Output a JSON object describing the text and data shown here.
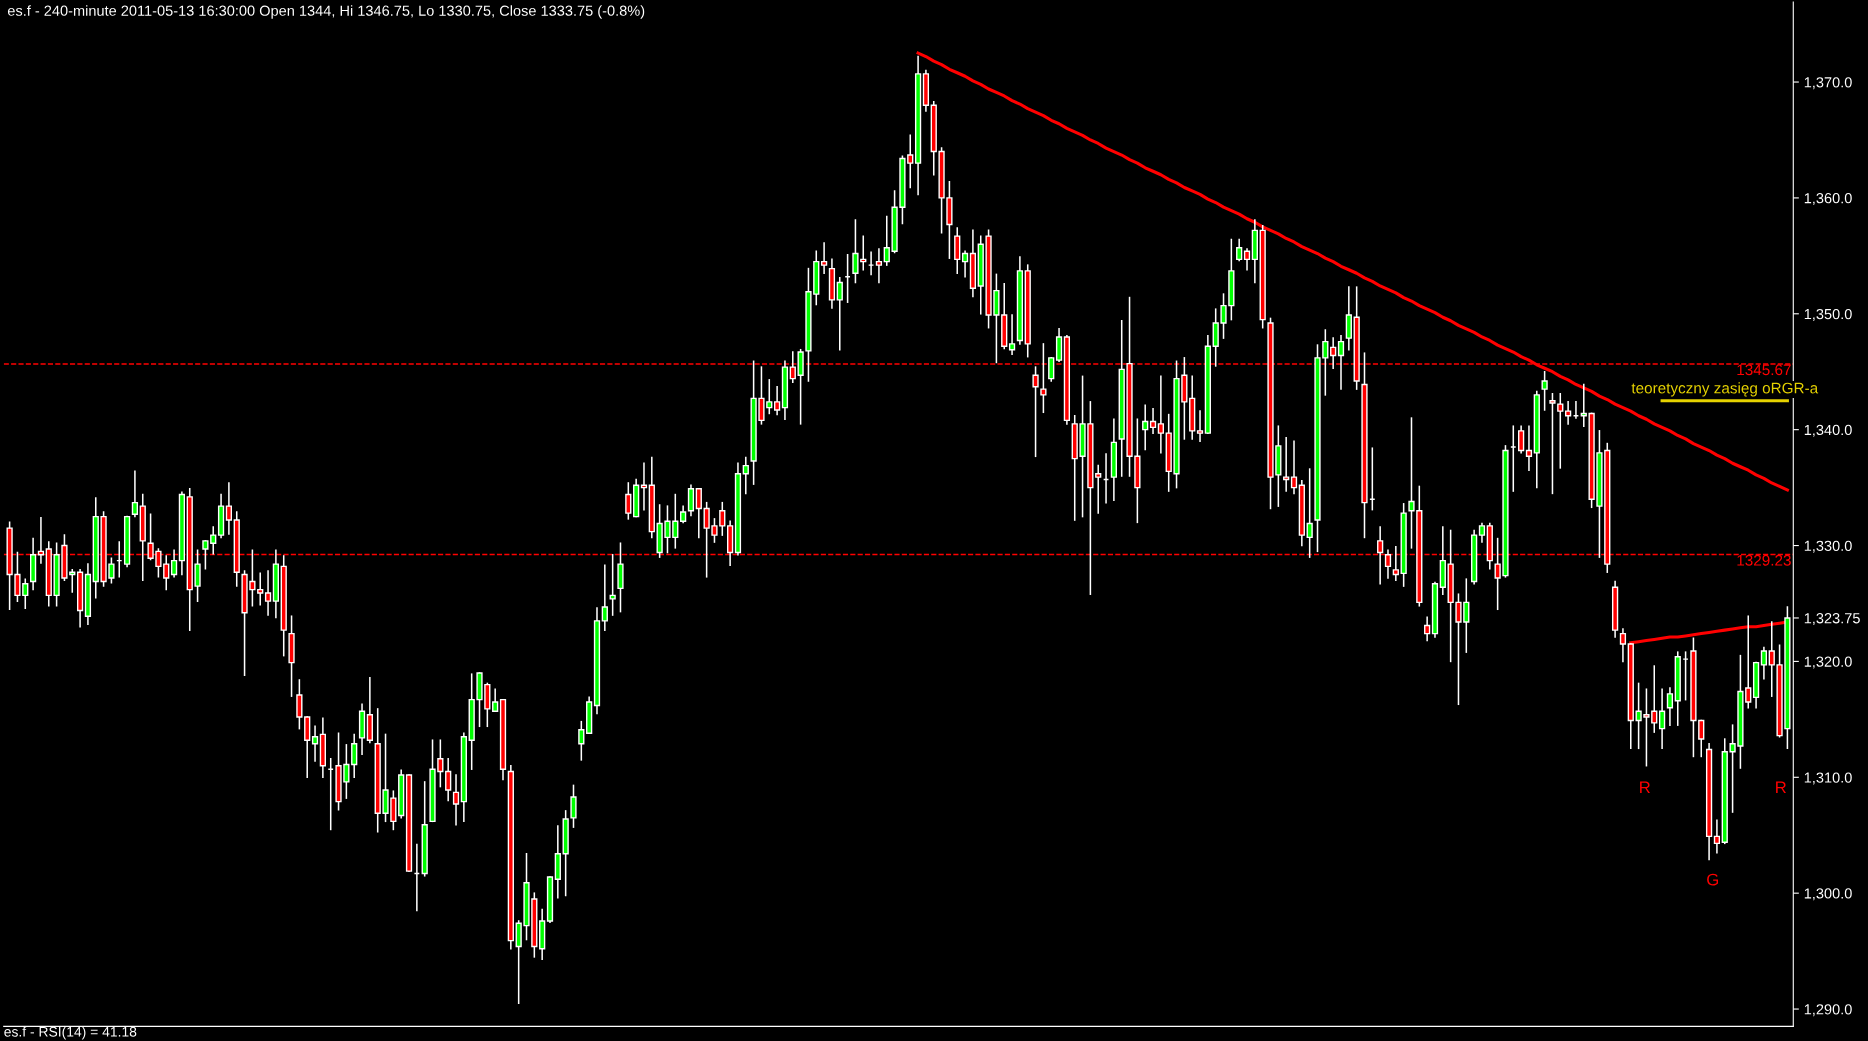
{
  "chart_data": {
    "type": "candlestick",
    "title": "es.f - 240-minute 2011-05-13 16:30:00 Open 1344, Hi 1346.75, Lo 1330.75, Close 1333.75 (-0.8%)",
    "categories": [
      null,
      null,
      null,
      null,
      null,
      null,
      null,
      null,
      null,
      null,
      null,
      null,
      null,
      null,
      null,
      null,
      null,
      null,
      null,
      null,
      null,
      null,
      null,
      null,
      null,
      null,
      null,
      null,
      null,
      null,
      null,
      null,
      null,
      null,
      null,
      null,
      null,
      null,
      null,
      null,
      null,
      null,
      null,
      null,
      null,
      null,
      null,
      null,
      null,
      null,
      null,
      null,
      null,
      null,
      null,
      null,
      null,
      null,
      null,
      null,
      null,
      null,
      null,
      null,
      null,
      null,
      null,
      null,
      null,
      null,
      null,
      null,
      null,
      null,
      null,
      null,
      null,
      null,
      null,
      null,
      null,
      null,
      null,
      null,
      null,
      null,
      null,
      null,
      null,
      null,
      null,
      null,
      null,
      null,
      null,
      null,
      null,
      null,
      null,
      null,
      null,
      null,
      null,
      null,
      null,
      null,
      null,
      null,
      null,
      null,
      null,
      null,
      null,
      null,
      null,
      null,
      null,
      null,
      null,
      null,
      null,
      null,
      null,
      null,
      null,
      null,
      null,
      null,
      null,
      null,
      null,
      null,
      null,
      null,
      null,
      null,
      null,
      null,
      null,
      null,
      null,
      null,
      null,
      null,
      null,
      null,
      null,
      null,
      null,
      null,
      null,
      null,
      null,
      null,
      null,
      null,
      null,
      null,
      null,
      null,
      null,
      null,
      null,
      null,
      null,
      null,
      null,
      null,
      null,
      null,
      null,
      null,
      null,
      null,
      null,
      null,
      null,
      null,
      null,
      null,
      null,
      null,
      null,
      null,
      null,
      null,
      null,
      null,
      null,
      null,
      null,
      null,
      null,
      null,
      null,
      null,
      null,
      null,
      null,
      null,
      null,
      null,
      null,
      null,
      null,
      null,
      null,
      null,
      null,
      null,
      null,
      null,
      null,
      null,
      null,
      null,
      null,
      null,
      null,
      null,
      null,
      null,
      null,
      null,
      null,
      null,
      null,
      null
    ],
    "ohlc": [
      [
        1331.5,
        1332,
        1324.5,
        1327.5
      ],
      [
        1327.5,
        1329.4,
        1325.2,
        1325.7
      ],
      [
        1325.7,
        1327.1,
        1324.6,
        1326.7
      ],
      [
        1326.9,
        1330.6,
        1326.2,
        1329.2
      ],
      [
        1329.5,
        1332.4,
        1328.5,
        1329.2
      ],
      [
        1329.7,
        1330.3,
        1324.8,
        1325.7
      ],
      [
        1325.7,
        1330.2,
        1324.8,
        1329.2
      ],
      [
        1330.0,
        1330.9,
        1327.0,
        1327.2
      ],
      [
        1327.5,
        1327.9,
        1326.0,
        1327.7
      ],
      [
        1327.7,
        1327.9,
        1323.0,
        1324.4
      ],
      [
        1323.9,
        1328.4,
        1323.2,
        1327.5
      ],
      [
        1326.9,
        1334.1,
        1325.5,
        1332.5
      ],
      [
        1332.5,
        1332.9,
        1326.5,
        1326.9
      ],
      [
        1327.2,
        1328.9,
        1326.8,
        1328.4
      ],
      [
        1328.7,
        1330.3,
        1327.3,
        1328.7
      ],
      [
        1328.4,
        1332.5,
        1328.2,
        1332.5
      ],
      [
        1332.7,
        1336.4,
        1332.5,
        1333.7
      ],
      [
        1333.4,
        1334.4,
        1327.0,
        1330.4
      ],
      [
        1330.2,
        1332.7,
        1328.8,
        1328.9
      ],
      [
        1329.5,
        1329.7,
        1327.3,
        1328.2
      ],
      [
        1328.4,
        1329.1,
        1326.2,
        1327.2
      ],
      [
        1327.5,
        1329.6,
        1327.3,
        1328.7
      ],
      [
        1328.7,
        1334.6,
        1327.5,
        1334.4
      ],
      [
        1334.2,
        1334.9,
        1322.7,
        1326.2
      ],
      [
        1326.5,
        1329.6,
        1325.2,
        1328.4
      ],
      [
        1329.7,
        1330.4,
        1328.0,
        1330.4
      ],
      [
        1330.2,
        1331.6,
        1329.3,
        1330.9
      ],
      [
        1330.9,
        1334.4,
        1330.7,
        1333.4
      ],
      [
        1333.4,
        1335.4,
        1331.0,
        1332.2
      ],
      [
        1332.2,
        1332.9,
        1326.5,
        1327.7
      ],
      [
        1327.5,
        1327.8,
        1318.8,
        1324.2
      ],
      [
        1326.9,
        1329.6,
        1324.8,
        1326.2
      ],
      [
        1326.2,
        1327.6,
        1324.9,
        1325.9
      ],
      [
        1325.9,
        1327.8,
        1324.0,
        1325.2
      ],
      [
        1325.2,
        1329.6,
        1323.8,
        1328.4
      ],
      [
        1328.2,
        1329.1,
        1320.5,
        1322.7
      ],
      [
        1322.4,
        1323.9,
        1317.0,
        1319.9
      ],
      [
        1317.1,
        1318.4,
        1314.2,
        1315.2
      ],
      [
        1315.2,
        1315.2,
        1310.0,
        1313.2
      ],
      [
        1312.9,
        1314.4,
        1311.4,
        1313.5
      ],
      [
        1313.7,
        1315.1,
        1310.0,
        1311.0
      ],
      [
        1310.7,
        1311.6,
        1305.5,
        1310.7
      ],
      [
        1311.0,
        1313.8,
        1307.2,
        1307.9
      ],
      [
        1309.6,
        1312.8,
        1308.2,
        1311.1
      ],
      [
        1311.1,
        1313.7,
        1310.0,
        1312.9
      ],
      [
        1313.4,
        1316.3,
        1312.0,
        1315.7
      ],
      [
        1315.4,
        1318.6,
        1313.0,
        1313.2
      ],
      [
        1312.9,
        1315.9,
        1305.3,
        1306.9
      ],
      [
        1306.9,
        1313.7,
        1306.2,
        1308.9
      ],
      [
        1308.2,
        1308.8,
        1305.5,
        1306.2
      ],
      [
        1306.7,
        1310.6,
        1306.5,
        1310.2
      ],
      [
        1310.2,
        1310.2,
        1301.9,
        1301.9
      ],
      [
        1301.7,
        1304.2,
        1298.5,
        1301.7
      ],
      [
        1301.7,
        1309.6,
        1301.5,
        1305.9
      ],
      [
        1306.2,
        1313.2,
        1306.2,
        1310.7
      ],
      [
        1311.6,
        1313.2,
        1309.2,
        1310.5
      ],
      [
        1310.5,
        1311.6,
        1308.0,
        1308.9
      ],
      [
        1308.7,
        1310.2,
        1305.9,
        1307.7
      ],
      [
        1307.9,
        1313.8,
        1306.2,
        1313.5
      ],
      [
        1313.2,
        1318.9,
        1310.7,
        1316.7
      ],
      [
        1316.7,
        1319.0,
        1314.4,
        1319.0
      ],
      [
        1318.0,
        1318.1,
        1314.4,
        1315.9
      ],
      [
        1315.7,
        1317.6,
        1315.7,
        1316.5
      ],
      [
        1316.7,
        1316.7,
        1309.8,
        1310.7
      ],
      [
        1310.5,
        1311.0,
        1295.2,
        1295.9
      ],
      [
        1295.4,
        1297.6,
        1290.5,
        1297.4
      ],
      [
        1297.2,
        1303.4,
        1296.0,
        1300.9
      ],
      [
        1299.5,
        1300.0,
        1294.5,
        1295.4
      ],
      [
        1295.2,
        1298.6,
        1294.3,
        1297.6
      ],
      [
        1297.6,
        1301.4,
        1297.5,
        1301.4
      ],
      [
        1301.2,
        1305.8,
        1299.6,
        1303.4
      ],
      [
        1303.4,
        1307.1,
        1299.8,
        1306.4
      ],
      [
        1306.5,
        1309.3,
        1305.7,
        1308.3
      ],
      [
        1312.9,
        1314.8,
        1311.5,
        1314.1
      ],
      [
        1313.8,
        1316.9,
        1313.8,
        1316.5
      ],
      [
        1316.2,
        1324.6,
        1315.5,
        1323.5
      ],
      [
        1323.5,
        1328.3,
        1322.7,
        1324.7
      ],
      [
        1325.4,
        1329.2,
        1324.0,
        1325.7
      ],
      [
        1326.3,
        1330.2,
        1324.3,
        1328.4
      ],
      [
        1334.4,
        1335.4,
        1332.3,
        1332.8
      ],
      [
        1332.5,
        1335.7,
        1332.5,
        1335.2
      ],
      [
        1335.2,
        1337.1,
        1333.1,
        1335.0
      ],
      [
        1335.2,
        1337.6,
        1330.7,
        1331.2
      ],
      [
        1329.4,
        1333.5,
        1329.0,
        1331.9
      ],
      [
        1330.7,
        1333.4,
        1329.4,
        1332.1
      ],
      [
        1330.7,
        1334.4,
        1329.8,
        1332.1
      ],
      [
        1332.1,
        1333.4,
        1332.0,
        1332.9
      ],
      [
        1333.0,
        1335.2,
        1332.6,
        1334.9
      ],
      [
        1334.9,
        1334.9,
        1330.7,
        1333.2
      ],
      [
        1333.2,
        1333.7,
        1327.3,
        1331.5
      ],
      [
        1331.7,
        1332.3,
        1330.3,
        1330.9
      ],
      [
        1333.0,
        1333.7,
        1330.9,
        1331.7
      ],
      [
        1331.7,
        1332.1,
        1328.3,
        1329.4
      ],
      [
        1329.4,
        1337.1,
        1329.2,
        1336.2
      ],
      [
        1336.2,
        1337.6,
        1334.5,
        1336.9
      ],
      [
        1337.3,
        1345.9,
        1335.3,
        1342.7
      ],
      [
        1342.7,
        1345.4,
        1340.5,
        1340.8
      ],
      [
        1341.9,
        1344.3,
        1341.4,
        1342.4
      ],
      [
        1342.4,
        1343.7,
        1341.3,
        1341.7
      ],
      [
        1341.9,
        1345.9,
        1340.9,
        1345.4
      ],
      [
        1345.4,
        1346.7,
        1344.1,
        1344.4
      ],
      [
        1344.7,
        1346.9,
        1340.5,
        1346.7
      ],
      [
        1346.8,
        1353.9,
        1344.2,
        1351.9
      ],
      [
        1351.7,
        1355.4,
        1350.8,
        1354.5
      ],
      [
        1354.5,
        1356.1,
        1353.5,
        1354.2
      ],
      [
        1353.9,
        1354.7,
        1350.5,
        1351.2
      ],
      [
        1351.2,
        1353.1,
        1346.9,
        1352.7
      ],
      [
        1353.2,
        1355.1,
        1351.0,
        1353.2
      ],
      [
        1353.5,
        1358.1,
        1352.7,
        1355.2
      ],
      [
        1354.7,
        1356.7,
        1353.8,
        1354.5
      ],
      [
        1354.2,
        1355.3,
        1353.4,
        1354.2
      ],
      [
        1354.5,
        1355.6,
        1352.7,
        1354.2
      ],
      [
        1354.5,
        1358.4,
        1354.2,
        1355.7
      ],
      [
        1355.4,
        1360.6,
        1355.3,
        1359.2
      ],
      [
        1359.2,
        1363.6,
        1357.8,
        1363.4
      ],
      [
        1363.7,
        1365.4,
        1360.9,
        1363.0
      ],
      [
        1363.0,
        1372.2,
        1360.3,
        1370.7
      ],
      [
        1370.7,
        1371.0,
        1367.5,
        1368.0
      ],
      [
        1368.0,
        1368.3,
        1362.0,
        1364.0
      ],
      [
        1364.0,
        1364.3,
        1357.0,
        1360.0
      ],
      [
        1360.0,
        1361.4,
        1354.8,
        1357.7
      ],
      [
        1356.7,
        1357.4,
        1353.5,
        1354.7
      ],
      [
        1354.5,
        1355.4,
        1353.2,
        1355.2
      ],
      [
        1355.2,
        1357.2,
        1351.5,
        1352.2
      ],
      [
        1352.4,
        1356.7,
        1350.0,
        1356.0
      ],
      [
        1356.7,
        1357.2,
        1348.8,
        1349.9
      ],
      [
        1349.9,
        1353.4,
        1345.8,
        1352.0
      ],
      [
        1349.9,
        1352.6,
        1347.0,
        1347.2
      ],
      [
        1346.9,
        1349.9,
        1346.5,
        1347.4
      ],
      [
        1347.7,
        1354.9,
        1347.4,
        1353.7
      ],
      [
        1353.7,
        1354.2,
        1346.3,
        1347.4
      ],
      [
        1344.7,
        1345.4,
        1337.7,
        1343.7
      ],
      [
        1343.5,
        1347.4,
        1341.5,
        1343.0
      ],
      [
        1344.4,
        1346.2,
        1344.2,
        1346.2
      ],
      [
        1346.0,
        1348.7,
        1345.9,
        1348.0
      ],
      [
        1348.0,
        1348.1,
        1340.5,
        1340.8
      ],
      [
        1340.5,
        1341.2,
        1332.2,
        1337.5
      ],
      [
        1337.7,
        1344.6,
        1332.5,
        1340.5
      ],
      [
        1340.5,
        1342.4,
        1325.8,
        1335.0
      ],
      [
        1336.2,
        1336.9,
        1332.8,
        1335.9
      ],
      [
        1335.7,
        1337.9,
        1333.7,
        1335.7
      ],
      [
        1335.9,
        1340.9,
        1333.9,
        1338.9
      ],
      [
        1339.2,
        1349.4,
        1336.0,
        1345.2
      ],
      [
        1345.7,
        1351.4,
        1336.0,
        1337.7
      ],
      [
        1337.7,
        1340.9,
        1332.0,
        1335.0
      ],
      [
        1340.0,
        1342.1,
        1338.3,
        1340.7
      ],
      [
        1340.7,
        1341.8,
        1339.7,
        1340.2
      ],
      [
        1340.5,
        1344.6,
        1338.0,
        1339.7
      ],
      [
        1339.7,
        1341.3,
        1334.7,
        1336.4
      ],
      [
        1336.2,
        1345.9,
        1335.0,
        1344.4
      ],
      [
        1344.7,
        1346.2,
        1339.2,
        1342.4
      ],
      [
        1342.7,
        1344.6,
        1339.2,
        1339.9
      ],
      [
        1339.9,
        1341.6,
        1339.0,
        1339.7
      ],
      [
        1339.7,
        1348.1,
        1339.7,
        1347.2
      ],
      [
        1347.2,
        1350.4,
        1345.5,
        1349.2
      ],
      [
        1349.2,
        1351.7,
        1347.9,
        1350.7
      ],
      [
        1350.7,
        1356.4,
        1349.5,
        1353.7
      ],
      [
        1354.7,
        1356.4,
        1354.6,
        1355.7
      ],
      [
        1355.4,
        1355.6,
        1353.8,
        1354.7
      ],
      [
        1354.7,
        1358.1,
        1352.7,
        1357.2
      ],
      [
        1357.2,
        1357.6,
        1348.8,
        1349.5
      ],
      [
        1349.2,
        1349.6,
        1333.2,
        1335.9
      ],
      [
        1336.1,
        1340.3,
        1333.4,
        1338.6
      ],
      [
        1335.9,
        1339.3,
        1334.7,
        1335.7
      ],
      [
        1335.9,
        1339.0,
        1334.5,
        1335.0
      ],
      [
        1335.2,
        1335.6,
        1330.0,
        1330.9
      ],
      [
        1330.7,
        1336.6,
        1329.0,
        1331.9
      ],
      [
        1332.2,
        1347.3,
        1329.5,
        1346.2
      ],
      [
        1346.2,
        1348.6,
        1343.0,
        1347.6
      ],
      [
        1347.1,
        1347.9,
        1345.3,
        1346.4
      ],
      [
        1346.4,
        1348.1,
        1343.5,
        1347.6
      ],
      [
        1347.9,
        1352.3,
        1346.9,
        1349.9
      ],
      [
        1349.7,
        1352.3,
        1343.5,
        1344.2
      ],
      [
        1343.9,
        1346.6,
        1330.7,
        1333.7
      ],
      [
        1334.0,
        1338.4,
        1333.1,
        1334.0
      ],
      [
        1330.4,
        1331.6,
        1326.7,
        1329.4
      ],
      [
        1329.2,
        1329.6,
        1327.2,
        1328.2
      ],
      [
        1327.9,
        1329.9,
        1327.0,
        1327.5
      ],
      [
        1327.6,
        1333.6,
        1326.5,
        1332.8
      ],
      [
        1333.0,
        1341.0,
        1329.8,
        1333.8
      ],
      [
        1333.0,
        1335.1,
        1324.8,
        1325.1
      ],
      [
        1323.1,
        1323.8,
        1321.8,
        1322.4
      ],
      [
        1322.4,
        1326.8,
        1322.1,
        1326.7
      ],
      [
        1326.4,
        1331.6,
        1325.8,
        1328.7
      ],
      [
        1328.4,
        1331.3,
        1320.0,
        1325.1
      ],
      [
        1325.1,
        1325.8,
        1316.3,
        1323.4
      ],
      [
        1323.4,
        1327.1,
        1320.8,
        1325.1
      ],
      [
        1326.9,
        1331.3,
        1326.7,
        1330.9
      ],
      [
        1330.9,
        1331.9,
        1330.3,
        1331.7
      ],
      [
        1331.7,
        1331.9,
        1328.0,
        1328.7
      ],
      [
        1328.4,
        1330.6,
        1324.5,
        1327.2
      ],
      [
        1327.4,
        1338.6,
        1327.3,
        1338.2
      ],
      [
        1338.5,
        1340.3,
        1334.7,
        1338.5
      ],
      [
        1339.9,
        1340.3,
        1338.0,
        1338.2
      ],
      [
        1338.2,
        1340.3,
        1336.5,
        1337.7
      ],
      [
        1338.0,
        1343.3,
        1335.0,
        1343.0
      ],
      [
        1343.5,
        1345.0,
        1341.7,
        1344.2
      ],
      [
        1342.5,
        1343.1,
        1334.5,
        1342.3
      ],
      [
        1342.2,
        1343.1,
        1336.7,
        1341.6
      ],
      [
        1341.6,
        1342.4,
        1340.5,
        1341.2
      ],
      [
        1341.2,
        1342.4,
        1341.0,
        1341.2
      ],
      [
        1341.2,
        1343.9,
        1340.3,
        1341.4
      ],
      [
        1341.4,
        1341.4,
        1333.3,
        1334.0
      ],
      [
        1333.4,
        1339.9,
        1329.0,
        1338.0
      ],
      [
        1338.2,
        1338.8,
        1327.7,
        1328.4
      ],
      [
        1326.4,
        1326.9,
        1322.1,
        1322.7
      ],
      [
        1322.4,
        1322.8,
        1320.0,
        1321.5
      ],
      [
        1321.5,
        1321.5,
        1312.5,
        1314.9
      ],
      [
        1314.9,
        1318.1,
        1312.5,
        1315.7
      ],
      [
        1315.4,
        1317.6,
        1311.0,
        1315.2
      ],
      [
        1315.7,
        1319.6,
        1313.9,
        1314.7
      ],
      [
        1314.2,
        1317.6,
        1312.5,
        1315.7
      ],
      [
        1316.0,
        1317.7,
        1314.5,
        1317.2
      ],
      [
        1316.6,
        1320.8,
        1314.5,
        1320.4
      ],
      [
        1320.2,
        1320.8,
        1316.7,
        1320.2
      ],
      [
        1320.9,
        1322.0,
        1311.8,
        1314.9
      ],
      [
        1314.9,
        1314.9,
        1311.8,
        1313.3
      ],
      [
        1312.4,
        1312.9,
        1302.9,
        1304.9
      ],
      [
        1304.9,
        1306.3,
        1303.5,
        1304.3
      ],
      [
        1304.4,
        1313.3,
        1304.3,
        1312.2
      ],
      [
        1312.2,
        1314.5,
        1307.0,
        1312.9
      ],
      [
        1312.7,
        1320.5,
        1310.8,
        1317.4
      ],
      [
        1317.7,
        1323.9,
        1316.0,
        1316.5
      ],
      [
        1316.9,
        1319.9,
        1316.0,
        1319.9
      ],
      [
        1319.7,
        1321.2,
        1318.5,
        1320.9
      ],
      [
        1320.9,
        1323.4,
        1317.0,
        1319.7
      ],
      [
        1319.7,
        1321.4,
        1313.5,
        1313.6
      ],
      [
        1314.2,
        1324.7,
        1312.5,
        1323.75
      ]
    ],
    "colors": [
      "#ff0000",
      "#ff0000",
      "#00ff00",
      "#00ff00",
      "#ff0000",
      "#ff0000",
      "#00ff00",
      "#ff0000",
      "#00ff00",
      "#ff0000",
      "#00ff00",
      "#00ff00",
      "#ff0000",
      "#00ff00",
      "#ffffff",
      "#00ff00",
      "#00ff00",
      "#ff0000",
      "#ff0000",
      "#ff0000",
      "#ff0000",
      "#00ff00",
      "#00ff00",
      "#ff0000",
      "#00ff00",
      "#00ff00",
      "#00ff00",
      "#00ff00",
      "#ff0000",
      "#ff0000",
      "#ff0000",
      "#ff0000",
      "#ff0000",
      "#ff0000",
      "#00ff00",
      "#ff0000",
      "#ff0000",
      "#ff0000",
      "#ff0000",
      "#00ff00",
      "#ff0000",
      "#ffffff",
      "#ff0000",
      "#00ff00",
      "#00ff00",
      "#00ff00",
      "#ff0000",
      "#ff0000",
      "#00ff00",
      "#ff0000",
      "#00ff00",
      "#ff0000",
      "#ffffff",
      "#00ff00",
      "#00ff00",
      "#ff0000",
      "#ff0000",
      "#ff0000",
      "#00ff00",
      "#00ff00",
      "#00ff00",
      "#ff0000",
      "#00ff00",
      "#ff0000",
      "#ff0000",
      "#00ff00",
      "#00ff00",
      "#ff0000",
      "#00ff00",
      "#00ff00",
      "#00ff00",
      "#00ff00",
      "#00ff00",
      "#00ff00",
      "#00ff00",
      "#00ff00",
      "#00ff00",
      "#00ff00",
      "#00ff00",
      "#ff0000",
      "#00ff00",
      "#ff0000",
      "#ff0000",
      "#00ff00",
      "#00ff00",
      "#00ff00",
      "#00ff00",
      "#00ff00",
      "#ff0000",
      "#ff0000",
      "#ff0000",
      "#ff0000",
      "#ff0000",
      "#00ff00",
      "#00ff00",
      "#00ff00",
      "#ff0000",
      "#00ff00",
      "#ff0000",
      "#00ff00",
      "#ff0000",
      "#00ff00",
      "#00ff00",
      "#00ff00",
      "#ff0000",
      "#ff0000",
      "#00ff00",
      "#ffffff",
      "#00ff00",
      "#ff0000",
      "#ffffff",
      "#ff0000",
      "#00ff00",
      "#00ff00",
      "#00ff00",
      "#ff0000",
      "#00ff00",
      "#ff0000",
      "#ff0000",
      "#ff0000",
      "#ff0000",
      "#ff0000",
      "#00ff00",
      "#ff0000",
      "#00ff00",
      "#ff0000",
      "#00ff00",
      "#ff0000",
      "#00ff00",
      "#00ff00",
      "#ff0000",
      "#ff0000",
      "#ff0000",
      "#00ff00",
      "#00ff00",
      "#ff0000",
      "#ff0000",
      "#00ff00",
      "#ff0000",
      "#ff0000",
      "#ffffff",
      "#00ff00",
      "#00ff00",
      "#ff0000",
      "#ff0000",
      "#00ff00",
      "#ff0000",
      "#ff0000",
      "#ff0000",
      "#00ff00",
      "#ff0000",
      "#ff0000",
      "#ff0000",
      "#00ff00",
      "#00ff00",
      "#00ff00",
      "#00ff00",
      "#00ff00",
      "#ff0000",
      "#00ff00",
      "#ff0000",
      "#ff0000",
      "#00ff00",
      "#ff0000",
      "#ff0000",
      "#ff0000",
      "#00ff00",
      "#00ff00",
      "#00ff00",
      "#ff0000",
      "#00ff00",
      "#00ff00",
      "#ff0000",
      "#ff0000",
      "#ffffff",
      "#ff0000",
      "#ff0000",
      "#ff0000",
      "#00ff00",
      "#00ff00",
      "#ff0000",
      "#ff0000",
      "#00ff00",
      "#00ff00",
      "#ff0000",
      "#ff0000",
      "#00ff00",
      "#00ff00",
      "#00ff00",
      "#ff0000",
      "#ff0000",
      "#00ff00",
      "#ffffff",
      "#ff0000",
      "#ff0000",
      "#00ff00",
      "#00ff00",
      "#ff0000",
      "#ff0000",
      "#ff0000",
      "#ffffff",
      "#00ff00",
      "#ff0000",
      "#00ff00",
      "#ff0000",
      "#ff0000",
      "#ff0000",
      "#ff0000",
      "#00ff00",
      "#ff0000",
      "#ff0000",
      "#00ff00",
      "#00ff00",
      "#00ff00",
      "#ffffff",
      "#ff0000",
      "#ff0000",
      "#ff0000",
      "#ff0000",
      "#00ff00",
      "#00ff00",
      "#00ff00",
      "#ff0000",
      "#00ff00",
      "#00ff00",
      "#ff0000",
      "#ff0000",
      "#00ff00"
    ],
    "series": [
      {
        "type": "line",
        "color": "#ff0000",
        "values": [
          null,
          null,
          null,
          null,
          null,
          null,
          null,
          null,
          null,
          null,
          null,
          null,
          null,
          null,
          null,
          null,
          null,
          null,
          null,
          null,
          null,
          null,
          null,
          null,
          null,
          null,
          null,
          null,
          null,
          null,
          null,
          null,
          null,
          null,
          null,
          null,
          null,
          null,
          null,
          null,
          null,
          null,
          null,
          null,
          null,
          null,
          null,
          null,
          null,
          null,
          null,
          null,
          null,
          null,
          null,
          null,
          null,
          null,
          null,
          null,
          null,
          null,
          null,
          null,
          null,
          null,
          null,
          null,
          null,
          null,
          null,
          null,
          null,
          null,
          null,
          null,
          null,
          null,
          null,
          null,
          null,
          null,
          null,
          null,
          null,
          null,
          null,
          null,
          null,
          null,
          null,
          null,
          null,
          null,
          null,
          null,
          null,
          null,
          null,
          null,
          null,
          null,
          null,
          null,
          null,
          null,
          null,
          null,
          null,
          null,
          null,
          null,
          null,
          null,
          null,
          null,
          1372.5,
          1372.2,
          1371.8,
          1371.5,
          1371.1,
          1370.8,
          1370.5,
          1370.1,
          1369.8,
          1369.4,
          1369.1,
          1368.8,
          1368.4,
          1368.1,
          1367.7,
          1367.4,
          1367.1,
          1366.7,
          1366.4,
          1366.0,
          1365.7,
          1365.4,
          1365.0,
          1364.7,
          1364.3,
          1364.0,
          1363.7,
          1363.3,
          1363.0,
          1362.6,
          1362.3,
          1362.0,
          1361.6,
          1361.3,
          1360.9,
          1360.6,
          1360.3,
          1359.9,
          1359.6,
          1359.2,
          1358.9,
          1358.6,
          1358.2,
          1357.9,
          1357.5,
          1357.2,
          1356.9,
          1356.5,
          1356.2,
          1355.8,
          1355.5,
          1355.2,
          1354.8,
          1354.5,
          1354.1,
          1353.8,
          1353.5,
          1353.1,
          1352.8,
          1352.4,
          1352.1,
          1351.8,
          1351.4,
          1351.1,
          1350.7,
          1350.4,
          1350.1,
          1349.7,
          1349.4,
          1349.0,
          1348.7,
          1348.4,
          1348.0,
          1347.7,
          1347.3,
          1347.0,
          1346.7,
          1346.3,
          1346.0,
          1345.6,
          1345.3,
          1345.0,
          1344.6,
          1344.3,
          1343.9,
          1343.6,
          1343.3,
          1342.9,
          1342.6,
          1342.2,
          1341.9,
          1341.6,
          1341.2,
          1340.9,
          1340.5,
          1340.2,
          1339.9,
          1339.5,
          1339.2,
          1338.8,
          1338.5,
          1338.2,
          1337.8,
          1337.5,
          1337.1,
          1336.8,
          1336.5,
          1336.1,
          1335.8,
          1335.4,
          1335.1,
          1334.8
        ]
      },
      {
        "type": "line",
        "color": "#ff0000",
        "values": [
          null,
          null,
          null,
          null,
          null,
          null,
          null,
          null,
          null,
          null,
          null,
          null,
          null,
          null,
          null,
          null,
          null,
          null,
          null,
          null,
          null,
          null,
          null,
          null,
          null,
          null,
          null,
          null,
          null,
          null,
          null,
          null,
          null,
          null,
          null,
          null,
          null,
          null,
          null,
          null,
          null,
          null,
          null,
          null,
          null,
          null,
          null,
          null,
          null,
          null,
          null,
          null,
          null,
          null,
          null,
          null,
          null,
          null,
          null,
          null,
          null,
          null,
          null,
          null,
          null,
          null,
          null,
          null,
          null,
          null,
          null,
          null,
          null,
          null,
          null,
          null,
          null,
          null,
          null,
          null,
          null,
          null,
          null,
          null,
          null,
          null,
          null,
          null,
          null,
          null,
          null,
          null,
          null,
          null,
          null,
          null,
          null,
          null,
          null,
          null,
          null,
          null,
          null,
          null,
          null,
          null,
          null,
          null,
          null,
          null,
          null,
          null,
          null,
          null,
          null,
          null,
          null,
          null,
          null,
          null,
          null,
          null,
          null,
          null,
          null,
          null,
          null,
          null,
          null,
          null,
          null,
          null,
          null,
          null,
          null,
          null,
          null,
          null,
          null,
          null,
          null,
          null,
          null,
          null,
          null,
          null,
          null,
          null,
          null,
          null,
          null,
          null,
          null,
          null,
          null,
          null,
          null,
          null,
          null,
          null,
          null,
          null,
          null,
          null,
          null,
          null,
          null,
          null,
          null,
          null,
          null,
          null,
          null,
          null,
          null,
          null,
          null,
          null,
          null,
          null,
          null,
          null,
          null,
          null,
          null,
          null,
          null,
          null,
          null,
          null,
          null,
          null,
          null,
          null,
          null,
          null,
          null,
          null,
          null,
          null,
          null,
          null,
          null,
          null,
          null,
          null,
          null,
          1321.6,
          1321.7,
          1321.8,
          1321.9,
          1322.0,
          1322.1,
          1322.1,
          1322.2,
          1322.3,
          1322.4,
          1322.5,
          1322.6,
          1322.7,
          1322.8,
          1322.9,
          1323.0,
          1323.0,
          1323.1,
          1323.2,
          1323.3,
          1323.4
        ]
      },
      {
        "type": "line",
        "name": "teoretyczny zasięg oRGR-a",
        "color": "#e6d200",
        "values": [
          null,
          null,
          null,
          null,
          null,
          null,
          null,
          null,
          null,
          null,
          null,
          null,
          null,
          null,
          null,
          null,
          null,
          null,
          null,
          null,
          null,
          null,
          null,
          null,
          null,
          null,
          null,
          null,
          null,
          null,
          null,
          null,
          null,
          null,
          null,
          null,
          null,
          null,
          null,
          null,
          null,
          null,
          null,
          null,
          null,
          null,
          null,
          null,
          null,
          null,
          null,
          null,
          null,
          null,
          null,
          null,
          null,
          null,
          null,
          null,
          null,
          null,
          null,
          null,
          null,
          null,
          null,
          null,
          null,
          null,
          null,
          null,
          null,
          null,
          null,
          null,
          null,
          null,
          null,
          null,
          null,
          null,
          null,
          null,
          null,
          null,
          null,
          null,
          null,
          null,
          null,
          null,
          null,
          null,
          null,
          null,
          null,
          null,
          null,
          null,
          null,
          null,
          null,
          null,
          null,
          null,
          null,
          null,
          null,
          null,
          null,
          null,
          null,
          null,
          null,
          null,
          null,
          null,
          null,
          null,
          null,
          null,
          null,
          null,
          null,
          null,
          null,
          null,
          null,
          null,
          null,
          null,
          null,
          null,
          null,
          null,
          null,
          null,
          null,
          null,
          null,
          null,
          null,
          null,
          null,
          null,
          null,
          null,
          null,
          null,
          null,
          null,
          null,
          null,
          null,
          null,
          null,
          null,
          null,
          null,
          null,
          null,
          null,
          null,
          null,
          null,
          null,
          null,
          null,
          null,
          null,
          null,
          null,
          null,
          null,
          null,
          null,
          null,
          null,
          null,
          null,
          null,
          null,
          null,
          null,
          null,
          null,
          null,
          null,
          null,
          null,
          null,
          null,
          null,
          null,
          null,
          null,
          null,
          null,
          null,
          null,
          null,
          null,
          null,
          null,
          null,
          null,
          null,
          null,
          null,
          null,
          1342.5,
          1342.5,
          1342.5,
          1342.5,
          1342.5,
          1342.5,
          1342.5,
          1342.5,
          1342.5,
          1342.5,
          1342.5,
          1342.5,
          1342.5,
          1342.5,
          1342.5,
          1342.5,
          1342.5
        ]
      }
    ],
    "ref_lines": [
      {
        "axis": "y",
        "value": 1345.67,
        "label": "1345.67",
        "color": "#ff0000",
        "line_style": "dashed"
      },
      {
        "axis": "y",
        "value": 1329.23,
        "label": "1329.23",
        "color": "#ff0000",
        "line_style": "dashed"
      }
    ],
    "annotations": [
      "R",
      "G",
      "R",
      "es.f - RSI(14) = 41.18"
    ],
    "ylim": [
      1288.5,
      1376.9
    ],
    "yticks": [
      {
        "value": 1290,
        "label": "1,290.0"
      },
      {
        "value": 1300,
        "label": "1,300.0"
      },
      {
        "value": 1310,
        "label": "1,310.0"
      },
      {
        "value": 1320,
        "label": "1,320.0"
      },
      {
        "value": 1323.75,
        "label": "1,323.75"
      },
      {
        "value": 1330,
        "label": "1,330.0"
      },
      {
        "value": 1340,
        "label": "1,340.0"
      },
      {
        "value": 1350,
        "label": "1,350.0"
      },
      {
        "value": 1360,
        "label": "1,360.0"
      },
      {
        "value": 1370,
        "label": "1,370.0"
      }
    ],
    "tick_labels": "y",
    "grid": false,
    "legend": false
  }
}
